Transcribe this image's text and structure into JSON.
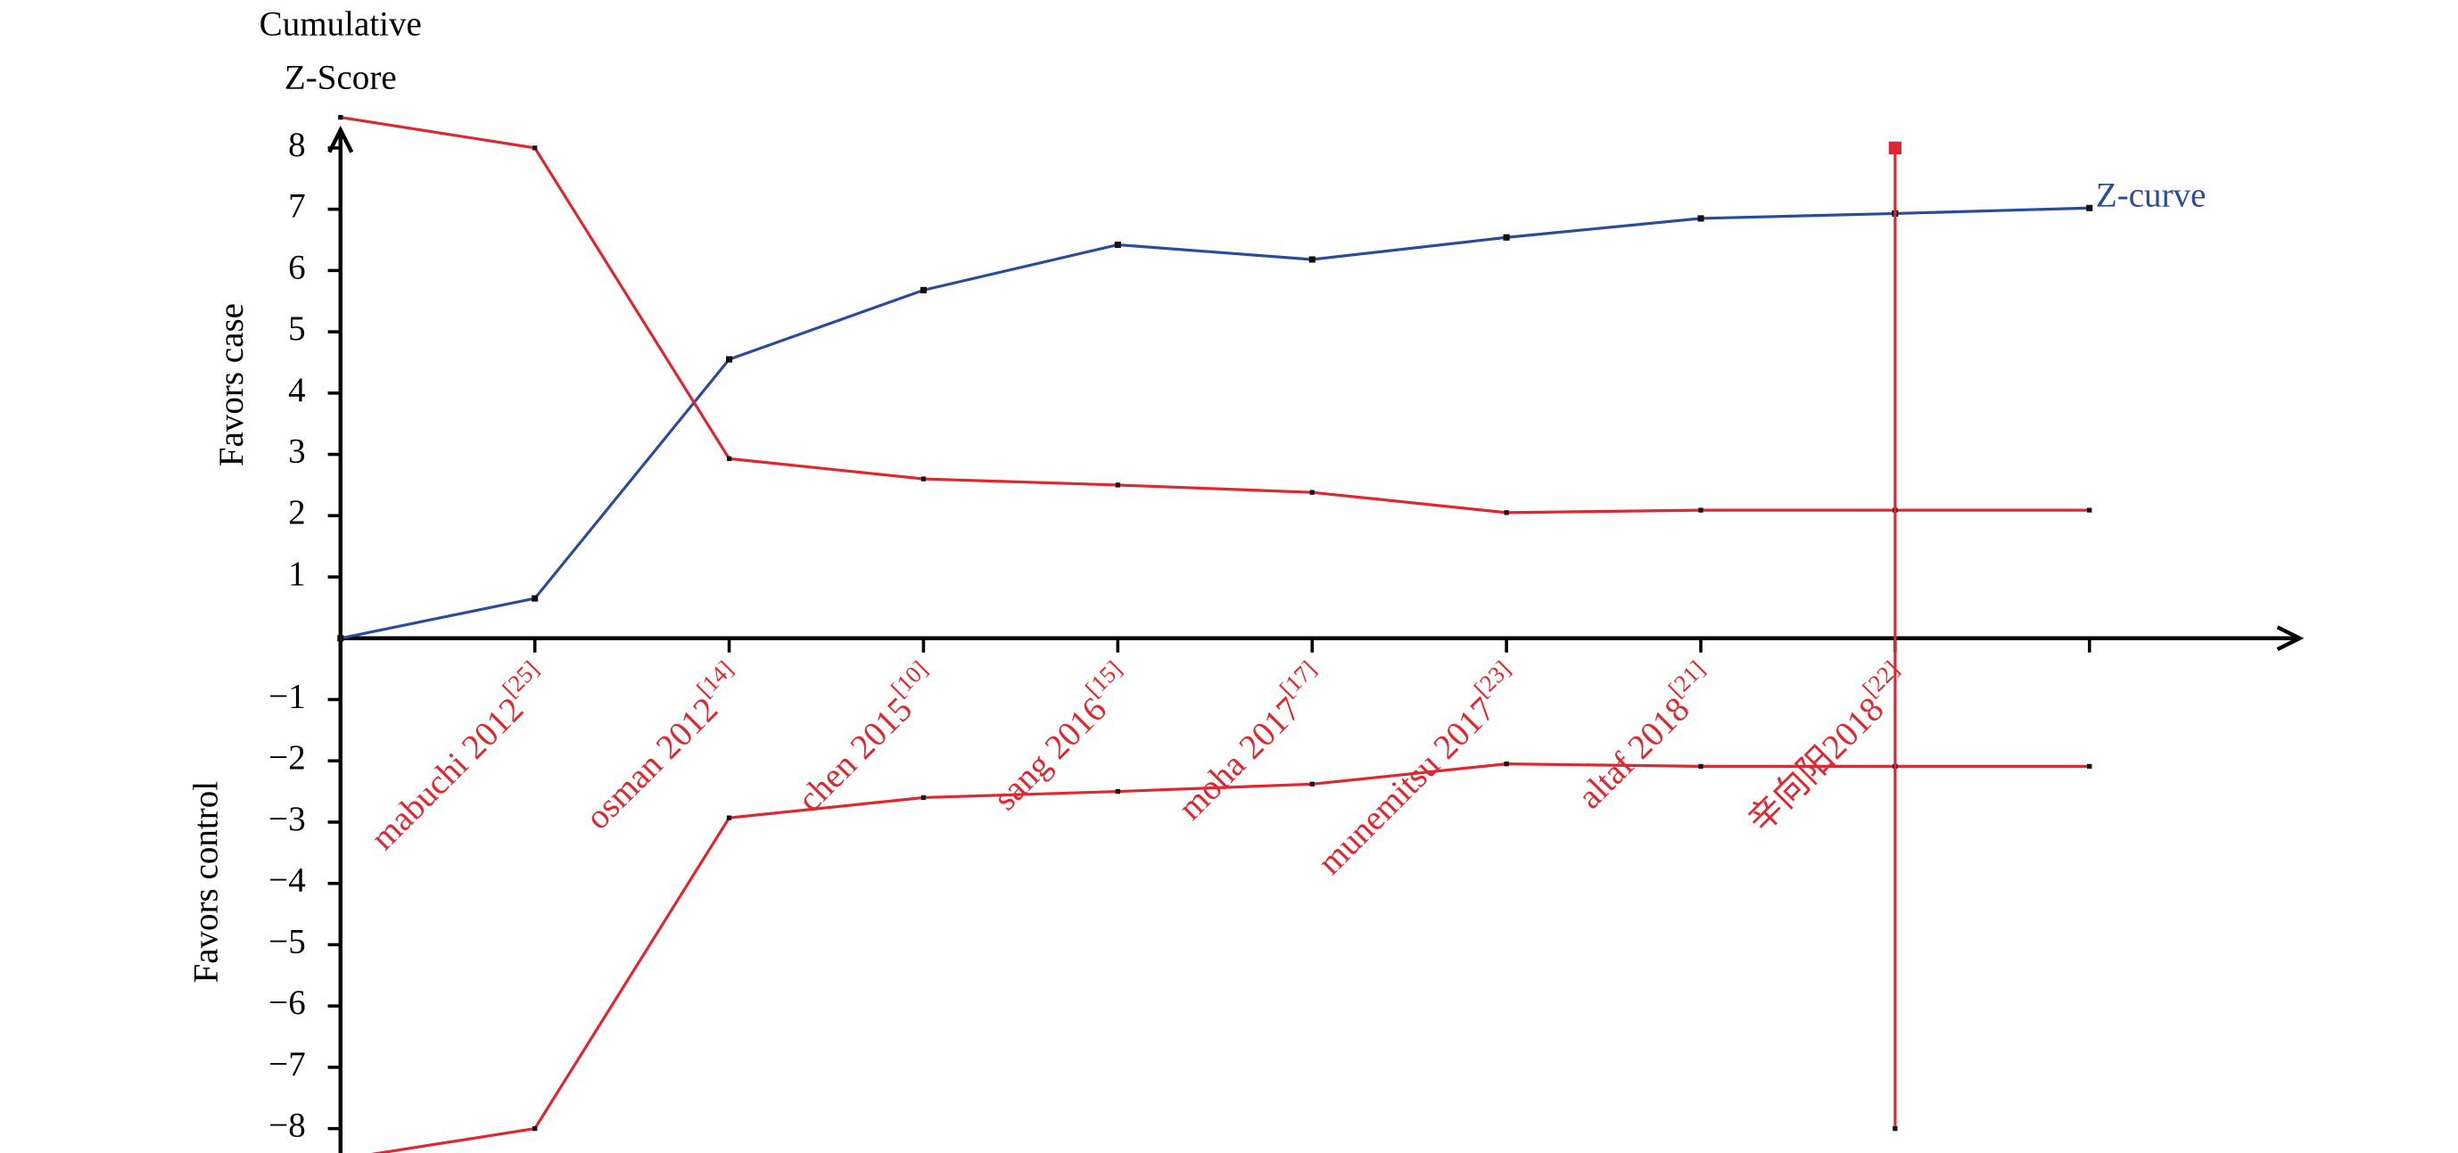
{
  "chart_data": {
    "type": "line",
    "title_lines": [
      "Cumulative",
      "Z-Score"
    ],
    "y_label_upper": "Favors case",
    "y_label_lower": "Favors control",
    "x": [
      0,
      1,
      2,
      3,
      4,
      5,
      6,
      7,
      8,
      9
    ],
    "categories": [
      null,
      "mabuchi 2012",
      "osman 2012",
      "chen 2015",
      "sang 2016",
      "moha 2017",
      "munemitsu 2017",
      "altaf 2018",
      "辛向阳2018",
      null
    ],
    "superscripts": [
      null,
      "[25]",
      "[14]",
      "[10]",
      "[15]",
      "[17]",
      "[23]",
      "[21]",
      "[22]",
      null
    ],
    "xlim": [
      0,
      10
    ],
    "ylim": [
      -8.5,
      8.5
    ],
    "yticks": [
      {
        "value": -8,
        "label": "−8"
      },
      {
        "value": -7,
        "label": "−7"
      },
      {
        "value": -6,
        "label": "−6"
      },
      {
        "value": -5,
        "label": "−5"
      },
      {
        "value": -4,
        "label": "−4"
      },
      {
        "value": -3,
        "label": "−3"
      },
      {
        "value": -2,
        "label": "−2"
      },
      {
        "value": -1,
        "label": "−1"
      },
      1,
      2,
      3,
      4,
      5,
      6,
      7,
      8
    ],
    "series": [
      {
        "name": "Z-curve",
        "color": "#2b4b9b",
        "values": [
          0,
          0.65,
          4.55,
          5.68,
          6.42,
          6.18,
          6.54,
          6.85,
          6.93,
          7.02
        ]
      },
      {
        "color": "#e0262f",
        "values": [
          8.5,
          8.0,
          2.93,
          2.6,
          2.5,
          2.38,
          2.05,
          2.09,
          2.09,
          2.09
        ]
      },
      {
        "color": "#e0262f",
        "values": [
          -8.5,
          -8.0,
          -2.93,
          -2.6,
          -2.5,
          -2.38,
          -2.05,
          -2.09,
          -2.09,
          -2.09
        ]
      }
    ],
    "required_information_size": {
      "x": 8,
      "values": [
        8,
        -8
      ],
      "color": "#e0262f"
    }
  }
}
